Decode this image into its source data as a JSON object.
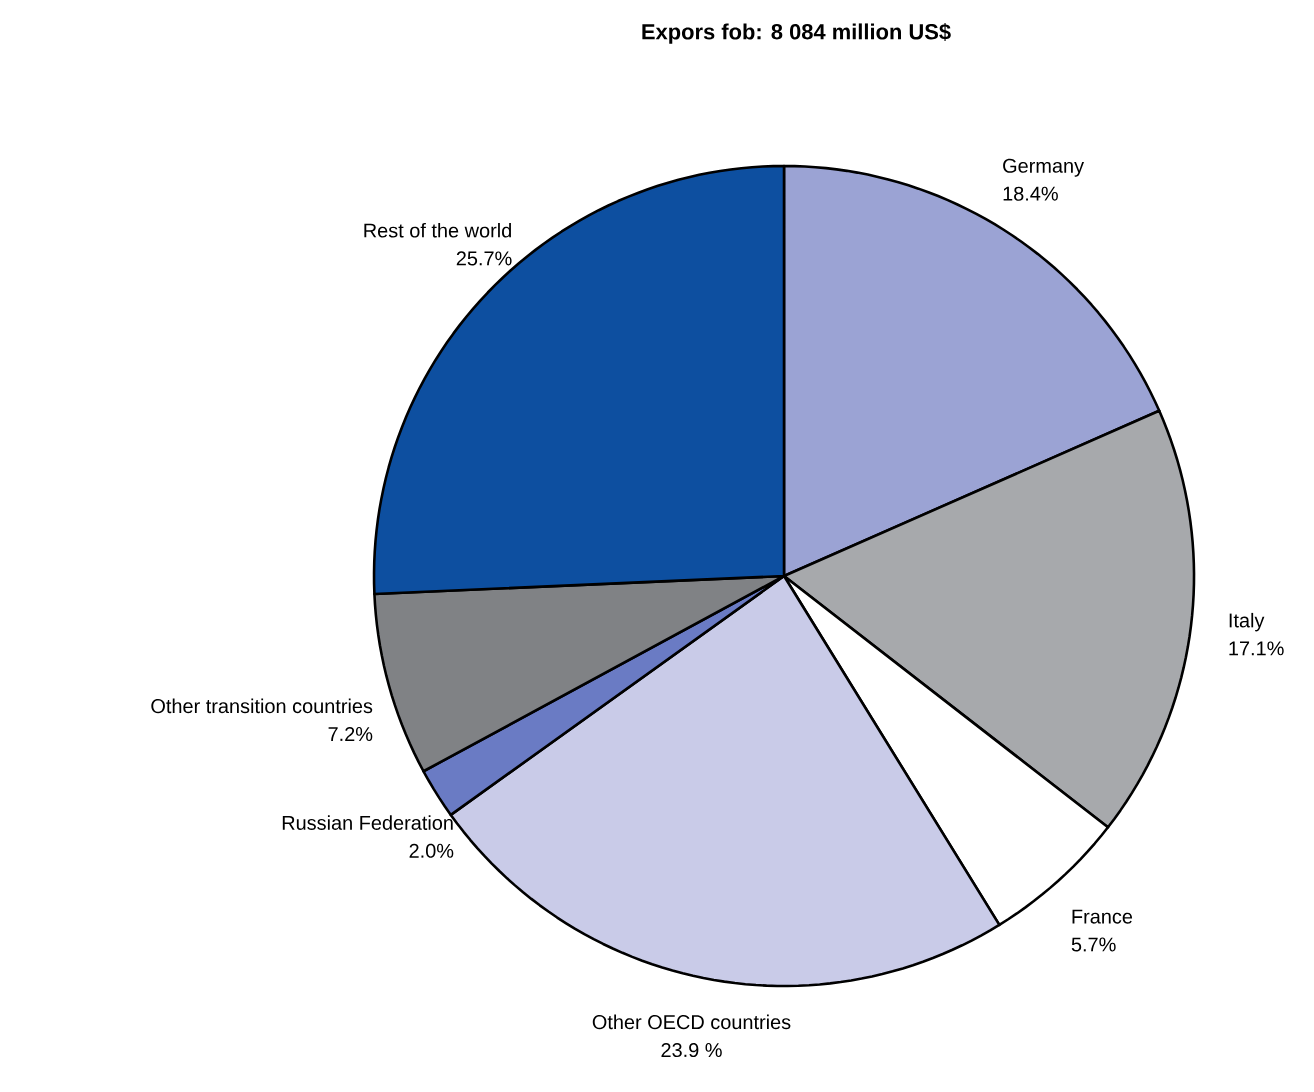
{
  "chart_data": {
    "type": "pie",
    "title": "Expors fob: 8 084 million US$",
    "categories": [
      "Germany",
      "Italy",
      "France",
      "Other OECD countries",
      "Russian Federation",
      "Other transition countries",
      "Rest of the world"
    ],
    "values": [
      18.4,
      17.1,
      5.7,
      23.9,
      2.0,
      7.2,
      25.7
    ],
    "value_labels": [
      "18.4%",
      "17.1%",
      "5.7%",
      "23.9 %",
      "2.0%",
      "7.2%",
      "25.7%"
    ],
    "colors": [
      "#9ba3d4",
      "#a7a9ac",
      "#ffffff",
      "#c9cbe8",
      "#6a7bc4",
      "#808285",
      "#0d4fa0"
    ]
  }
}
